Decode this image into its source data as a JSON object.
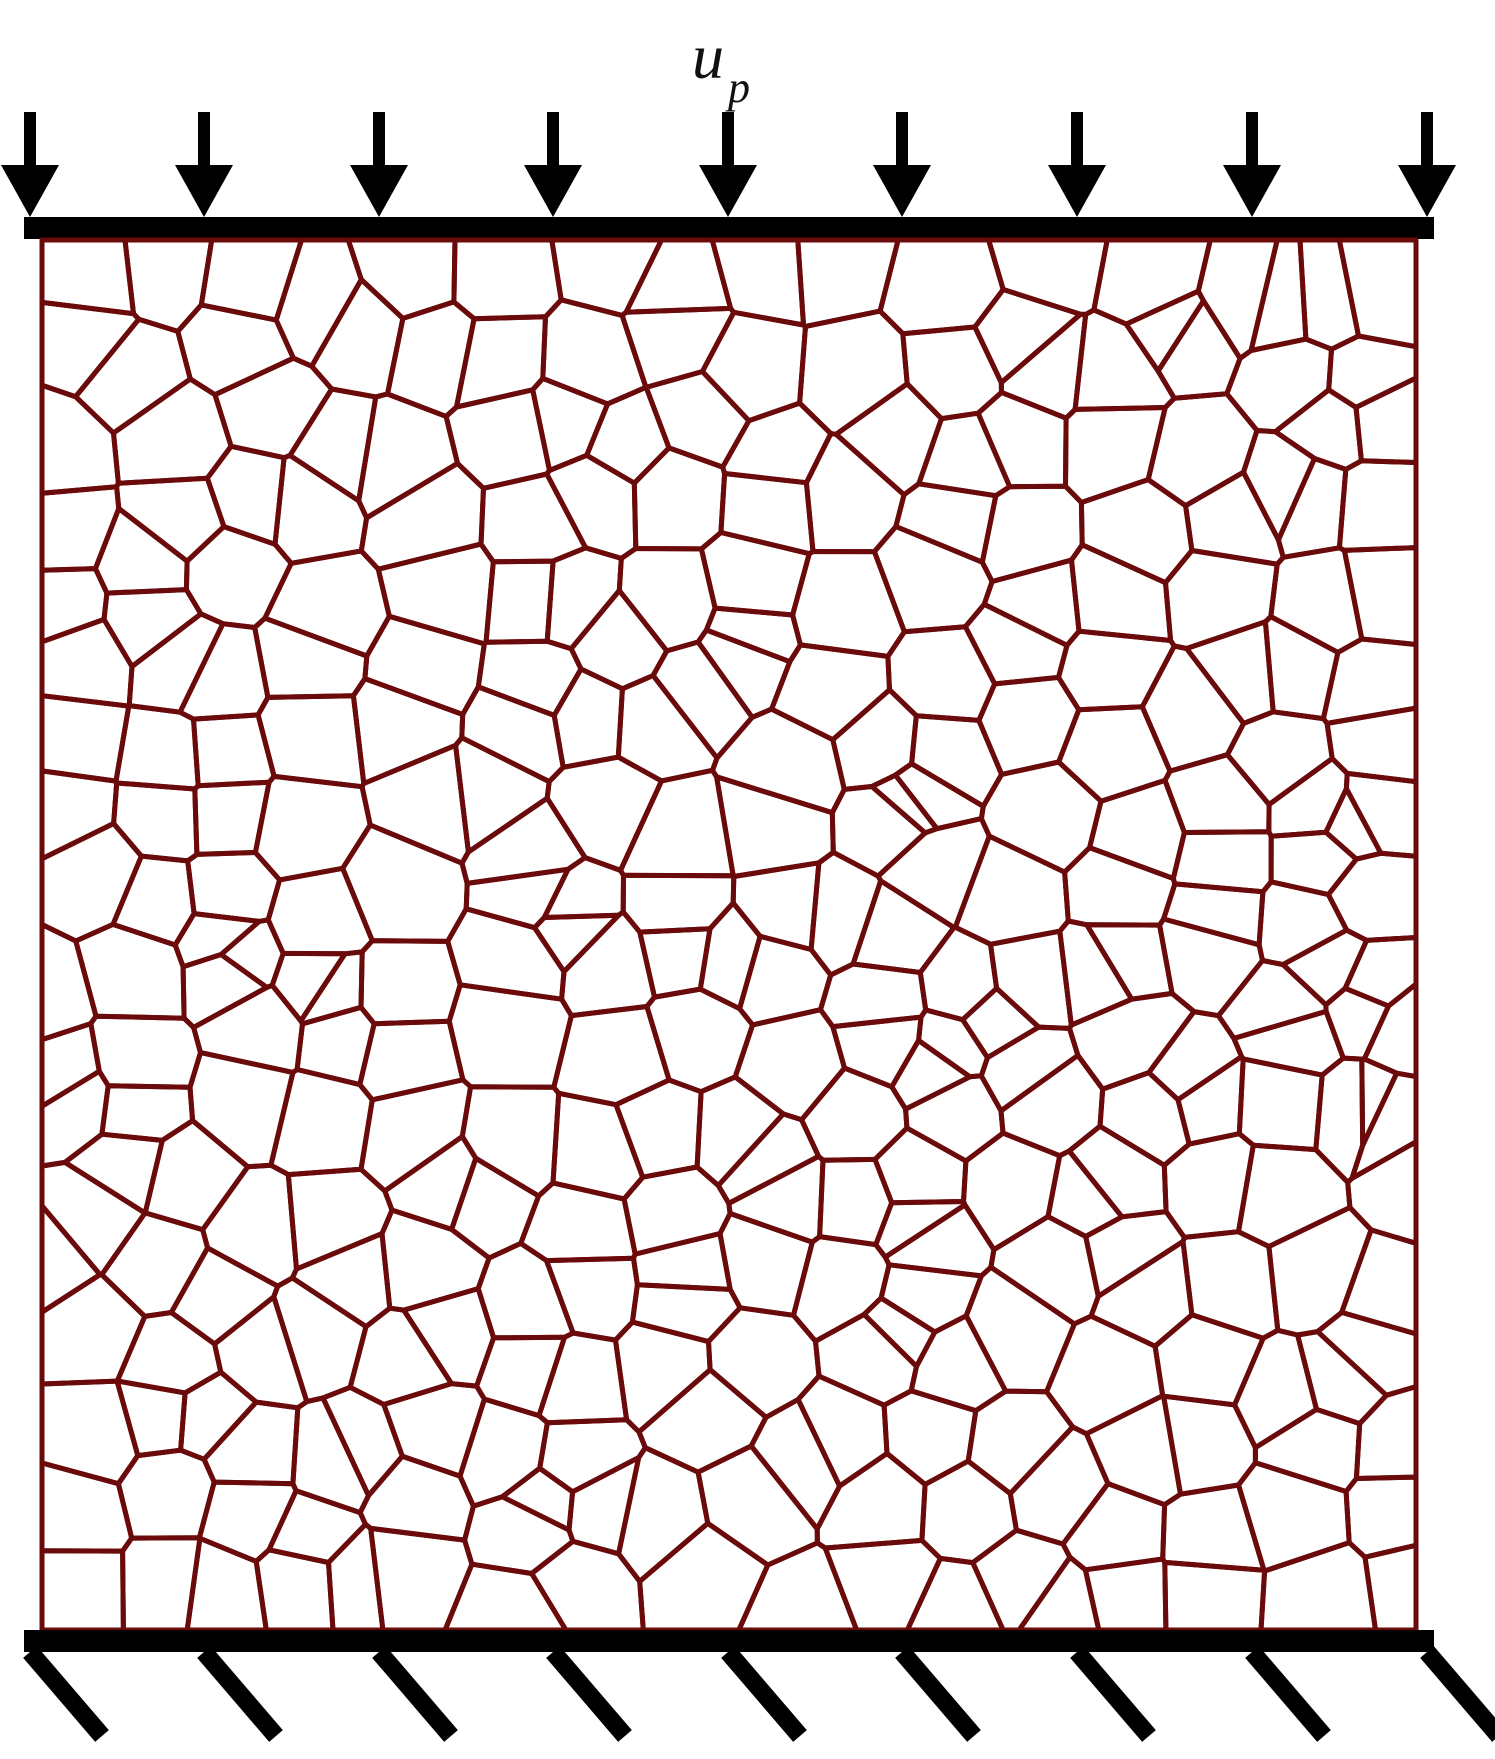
{
  "load_label": {
    "main": "u",
    "subscript": "p"
  },
  "colors": {
    "mesh": "#6b0a0a",
    "plate": "#000000",
    "background": "#ffffff"
  },
  "load_arrows": {
    "count": 9,
    "direction": "down"
  },
  "support_hatches": {
    "count": 9
  }
}
